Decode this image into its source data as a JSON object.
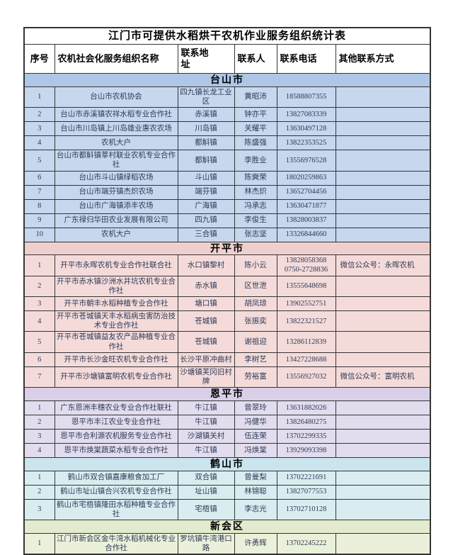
{
  "table": {
    "title": "江门市可提供水稻烘干农机作业服务组织统计表",
    "columns": [
      "序号",
      "农机社会化服务组织名称",
      "联系地址",
      "联系人",
      "联系电话",
      "其他联系方式"
    ],
    "sections": [
      {
        "name": "台山市",
        "bar_color": "#afc7e6",
        "row_color": "#c6d7ee",
        "rows": [
          {
            "no": "1",
            "org": "台山市农机协会",
            "address": "四九镇长龙工业区",
            "person": "黄昭沛",
            "phone": "18588807355",
            "other": ""
          },
          {
            "no": "2",
            "org": "台山市赤溪镇农祥水稻专业合作社",
            "address": "赤溪镇",
            "person": "钟亦平",
            "phone": "13827083339",
            "other": ""
          },
          {
            "no": "3",
            "org": "台山市川岛镇上川岛雄业惠农农场",
            "address": "川岛镇",
            "person": "关耀平",
            "phone": "13630497128",
            "other": ""
          },
          {
            "no": "4",
            "org": "农机大户",
            "address": "都斛镇",
            "person": "陈盛强",
            "phone": "13822353525",
            "other": ""
          },
          {
            "no": "5",
            "org": "台山市都斛镇莘村联业农机专业合作社",
            "address": "都斛镇",
            "person": "李胜业",
            "phone": "13556976528",
            "other": ""
          },
          {
            "no": "6",
            "org": "台山市斗山镇绿稻农场",
            "address": "斗山镇",
            "person": "陈奭荣",
            "phone": "18020259863",
            "other": ""
          },
          {
            "no": "7",
            "org": "台山市端芬镇杰炽农场",
            "address": "端芬镇",
            "person": "林杰炽",
            "phone": "13652704456",
            "other": ""
          },
          {
            "no": "8",
            "org": "台山市广海镇添丰农场",
            "address": "广海镇",
            "person": "冯承志",
            "phone": "13630471877",
            "other": ""
          },
          {
            "no": "9",
            "org": "广东禄归华田农业发展有限公司",
            "address": "四九镇",
            "person": "李俊生",
            "phone": "13828003837",
            "other": ""
          },
          {
            "no": "10",
            "org": "农机大户",
            "address": "三合镇",
            "person": "张志坚",
            "phone": "13326844660",
            "other": ""
          }
        ]
      },
      {
        "name": "开平市",
        "bar_color": "#efcfcd",
        "row_color": "#f4dbda",
        "rows": [
          {
            "no": "1",
            "org": "开平市永晖农机专业合作社联合社",
            "address": "水口镇黎村",
            "person": "陈小云",
            "phone": "13828058368\n0750-2728836",
            "other": "微信公众号：永晖农机"
          },
          {
            "no": "2",
            "org": "开平市赤水镇沙洲水井坑农机专业合作社",
            "address": "赤水镇",
            "person": "区世泄",
            "phone": "13555648698",
            "other": ""
          },
          {
            "no": "3",
            "org": "开平市朝丰水稻种植专业合作社",
            "address": "塘口镇",
            "person": "胡凤琼",
            "phone": "13902552751",
            "other": ""
          },
          {
            "no": "4",
            "org": "开平市苍城镇天丰水稻病虫害防治技术专业合作社",
            "address": "苍城镇",
            "person": "张振奕",
            "phone": "13822321527",
            "other": ""
          },
          {
            "no": "5",
            "org": "开平市苍城镇益友农产品种植专业合作社",
            "address": "苍城镇",
            "person": "谢祖迎",
            "phone": "13286112839",
            "other": ""
          },
          {
            "no": "6",
            "org": "开平市长沙金旺农机专业合作社",
            "address": "长沙平原冲曲村",
            "person": "李树艺",
            "phone": "13427228688",
            "other": ""
          },
          {
            "no": "7",
            "org": "开平市沙塘镇富明农机专业合作社",
            "address": "沙塘镇芙冈旧村牌",
            "person": "劳裕富",
            "phone": "13556927032",
            "other": "微信公众号：富明农机"
          }
        ]
      },
      {
        "name": "恩平市",
        "bar_color": "#d9d0e8",
        "row_color": "#e2dcee",
        "rows": [
          {
            "no": "1",
            "org": "广东恩洲丰穗农业专业合作社联社",
            "address": "牛江镇",
            "person": "曾翠玲",
            "phone": "13631882026",
            "other": ""
          },
          {
            "no": "2",
            "org": "恩平市丰江农业专业合作社",
            "address": "牛江镇",
            "person": "冯健华",
            "phone": "13826480275",
            "other": ""
          },
          {
            "no": "3",
            "org": "恩平市合利源农机服务专业合作社",
            "address": "沙湖镇关村",
            "person": "伍连荣",
            "phone": "13702299335",
            "other": ""
          },
          {
            "no": "4",
            "org": "恩平市焕棠蔬菜水稻专业合作社",
            "address": "牛江镇",
            "person": "冯焕棠",
            "phone": "13929093398",
            "other": ""
          }
        ]
      },
      {
        "name": "鹤山市",
        "bar_color": "#cbe5ee",
        "row_color": "#d9edf1",
        "rows": [
          {
            "no": "1",
            "org": "鹤山市双合镇嘉康粮食加工厂",
            "address": "双合镇",
            "person": "曾曼梨",
            "phone": "13702221691",
            "other": ""
          },
          {
            "no": "2",
            "org": "鹤山市址山镇合兴农机专业合作社",
            "address": "址山镇",
            "person": "林锦聪",
            "phone": "13827077553",
            "other": ""
          },
          {
            "no": "3",
            "org": "鹤山市宅梧镇隆田水稻种植专业合作社",
            "address": "宅梧镇",
            "person": "李志光",
            "phone": "13702710128",
            "other": ""
          }
        ]
      },
      {
        "name": "新会区",
        "bar_color": "#e2ebcd",
        "row_color": "#eaf0da",
        "rows": [
          {
            "no": "1",
            "org": "江门市新会区金牛湾水稻机械化专业合作社",
            "address": "罗坑镇牛湾港口路",
            "person": "许勇辉",
            "phone": "13702245222",
            "other": ""
          }
        ]
      }
    ]
  }
}
